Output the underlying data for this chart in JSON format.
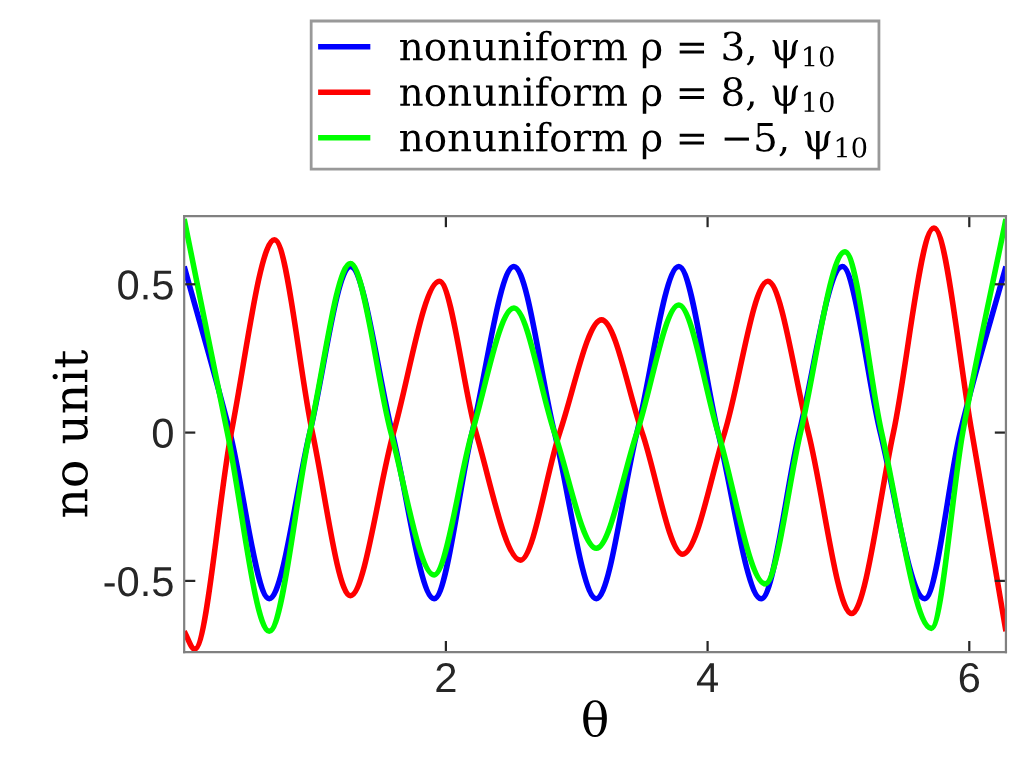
{
  "chart_data": {
    "type": "line",
    "xlabel": "θ",
    "ylabel": "no unit",
    "xlim": [
      0,
      6.28
    ],
    "ylim": [
      -0.74,
      0.73
    ],
    "xticks": [
      2,
      4,
      6
    ],
    "yticks": [
      {
        "value": -0.5,
        "label": "-0.5"
      },
      0,
      0.5
    ],
    "grid": false,
    "legend": "top",
    "marker": "none",
    "line_style": "solid",
    "series": [
      {
        "name": "nonuniform ρ = 3, ψ$_{10}$",
        "color": "#0000ff",
        "x": [
          0,
          0.35,
          0.65,
          0.96,
          1.27,
          1.59,
          1.91,
          2.2,
          2.52,
          2.83,
          3.15,
          3.46,
          3.78,
          4.08,
          4.41,
          4.7,
          5.03,
          5.32,
          5.66,
          5.93,
          6.28
        ],
        "values": [
          0.56,
          0,
          -0.56,
          0,
          0.56,
          0,
          -0.56,
          0,
          0.56,
          0,
          -0.56,
          0,
          0.56,
          0,
          -0.56,
          0,
          0.56,
          0,
          -0.56,
          0,
          0.56
        ]
      },
      {
        "name": "nonuniform ρ = 8, ψ$_{10}$",
        "color": "#ff0000",
        "x": [
          0,
          0.08,
          0.36,
          0.69,
          0.98,
          1.27,
          1.6,
          1.95,
          2.23,
          2.57,
          2.87,
          3.19,
          3.5,
          3.81,
          4.13,
          4.46,
          4.77,
          5.1,
          5.42,
          5.73,
          6.02,
          6.28
        ],
        "values": [
          -0.67,
          -0.73,
          0,
          0.65,
          0,
          -0.55,
          0,
          0.51,
          0,
          -0.43,
          0,
          0.38,
          0,
          -0.41,
          0,
          0.51,
          0,
          -0.61,
          0,
          0.69,
          0,
          -0.67
        ]
      },
      {
        "name": "nonuniform ρ = −5, ψ$_{10}$",
        "color": "#00ff00",
        "x": [
          0,
          0.33,
          0.65,
          0.96,
          1.27,
          1.58,
          1.91,
          2.2,
          2.52,
          2.83,
          3.15,
          3.46,
          3.78,
          4.08,
          4.44,
          4.71,
          5.05,
          5.33,
          5.71,
          5.95,
          6.28
        ],
        "values": [
          0.72,
          0,
          -0.67,
          0,
          0.57,
          0,
          -0.48,
          0,
          0.42,
          0,
          -0.39,
          0,
          0.43,
          0,
          -0.51,
          0,
          0.61,
          0,
          -0.66,
          0,
          0.72
        ]
      }
    ]
  }
}
